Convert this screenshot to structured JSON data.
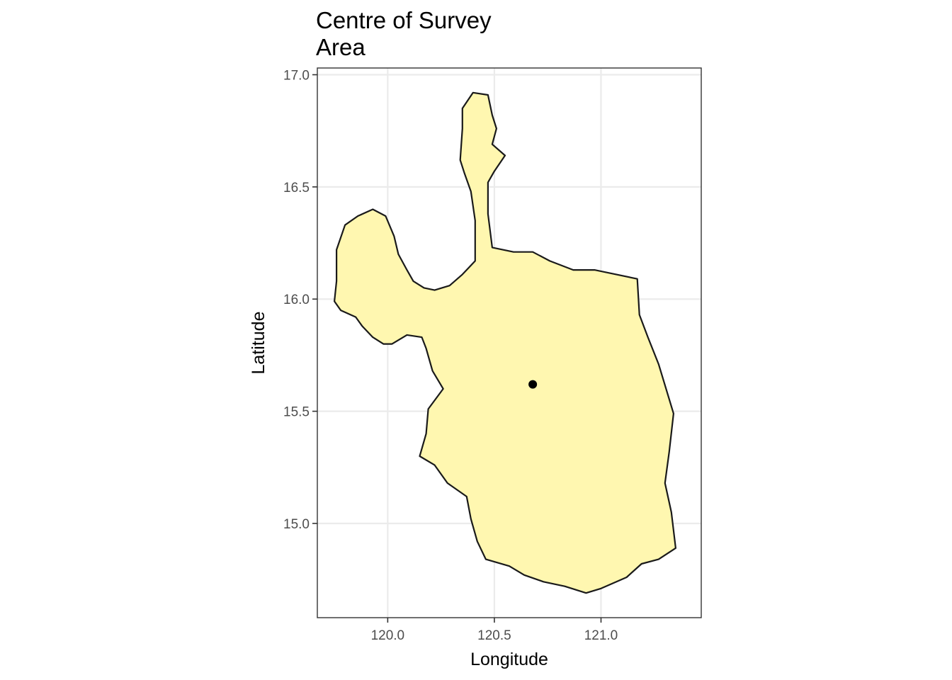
{
  "map": {
    "title_lines": [
      "Centre of Survey",
      "Area"
    ],
    "xlabel": "Longitude",
    "ylabel": "Latitude",
    "xlim": [
      119.67,
      121.47
    ],
    "ylim": [
      14.58,
      17.03
    ],
    "x_ticks": [
      120.0,
      120.5,
      121.0
    ],
    "x_tick_labels": [
      "120.0",
      "120.5",
      "121.0"
    ],
    "y_ticks": [
      15.0,
      15.5,
      16.0,
      16.5,
      17.0
    ],
    "y_tick_labels": [
      "15.0",
      "15.5",
      "16.0",
      "16.5",
      "17.0"
    ],
    "grid": true,
    "region_fill": "#fff7b0",
    "outline_color": "#1a1a1a",
    "centre_point": {
      "lon": 120.68,
      "lat": 15.62,
      "color": "#000000"
    },
    "region_outline": [
      [
        120.4,
        16.92
      ],
      [
        120.47,
        16.91
      ],
      [
        120.49,
        16.82
      ],
      [
        120.51,
        16.76
      ],
      [
        120.49,
        16.69
      ],
      [
        120.55,
        16.64
      ],
      [
        120.5,
        16.57
      ],
      [
        120.47,
        16.52
      ],
      [
        120.47,
        16.38
      ],
      [
        120.49,
        16.23
      ],
      [
        120.59,
        16.21
      ],
      [
        120.68,
        16.21
      ],
      [
        120.76,
        16.17
      ],
      [
        120.87,
        16.13
      ],
      [
        120.97,
        16.13
      ],
      [
        121.17,
        16.09
      ],
      [
        121.18,
        15.93
      ],
      [
        121.22,
        15.83
      ],
      [
        121.27,
        15.71
      ],
      [
        121.34,
        15.49
      ],
      [
        121.32,
        15.32
      ],
      [
        121.3,
        15.18
      ],
      [
        121.33,
        15.05
      ],
      [
        121.35,
        14.89
      ],
      [
        121.27,
        14.84
      ],
      [
        121.19,
        14.82
      ],
      [
        121.12,
        14.76
      ],
      [
        121.0,
        14.71
      ],
      [
        120.93,
        14.69
      ],
      [
        120.83,
        14.72
      ],
      [
        120.73,
        14.74
      ],
      [
        120.64,
        14.77
      ],
      [
        120.57,
        14.81
      ],
      [
        120.46,
        14.84
      ],
      [
        120.42,
        14.92
      ],
      [
        120.39,
        15.02
      ],
      [
        120.37,
        15.12
      ],
      [
        120.28,
        15.18
      ],
      [
        120.22,
        15.26
      ],
      [
        120.15,
        15.3
      ],
      [
        120.18,
        15.4
      ],
      [
        120.19,
        15.51
      ],
      [
        120.26,
        15.6
      ],
      [
        120.21,
        15.68
      ],
      [
        120.18,
        15.78
      ],
      [
        120.16,
        15.83
      ],
      [
        120.09,
        15.84
      ],
      [
        120.02,
        15.8
      ],
      [
        119.98,
        15.8
      ],
      [
        119.93,
        15.83
      ],
      [
        119.88,
        15.88
      ],
      [
        119.85,
        15.92
      ],
      [
        119.78,
        15.95
      ],
      [
        119.75,
        15.99
      ],
      [
        119.76,
        16.08
      ],
      [
        119.76,
        16.22
      ],
      [
        119.8,
        16.33
      ],
      [
        119.86,
        16.37
      ],
      [
        119.93,
        16.4
      ],
      [
        119.99,
        16.37
      ],
      [
        120.03,
        16.28
      ],
      [
        120.05,
        16.2
      ],
      [
        120.09,
        16.13
      ],
      [
        120.12,
        16.08
      ],
      [
        120.17,
        16.05
      ],
      [
        120.22,
        16.04
      ],
      [
        120.29,
        16.06
      ],
      [
        120.35,
        16.11
      ],
      [
        120.41,
        16.17
      ],
      [
        120.41,
        16.35
      ],
      [
        120.39,
        16.48
      ],
      [
        120.36,
        16.56
      ],
      [
        120.34,
        16.62
      ],
      [
        120.35,
        16.76
      ],
      [
        120.35,
        16.85
      ]
    ]
  }
}
